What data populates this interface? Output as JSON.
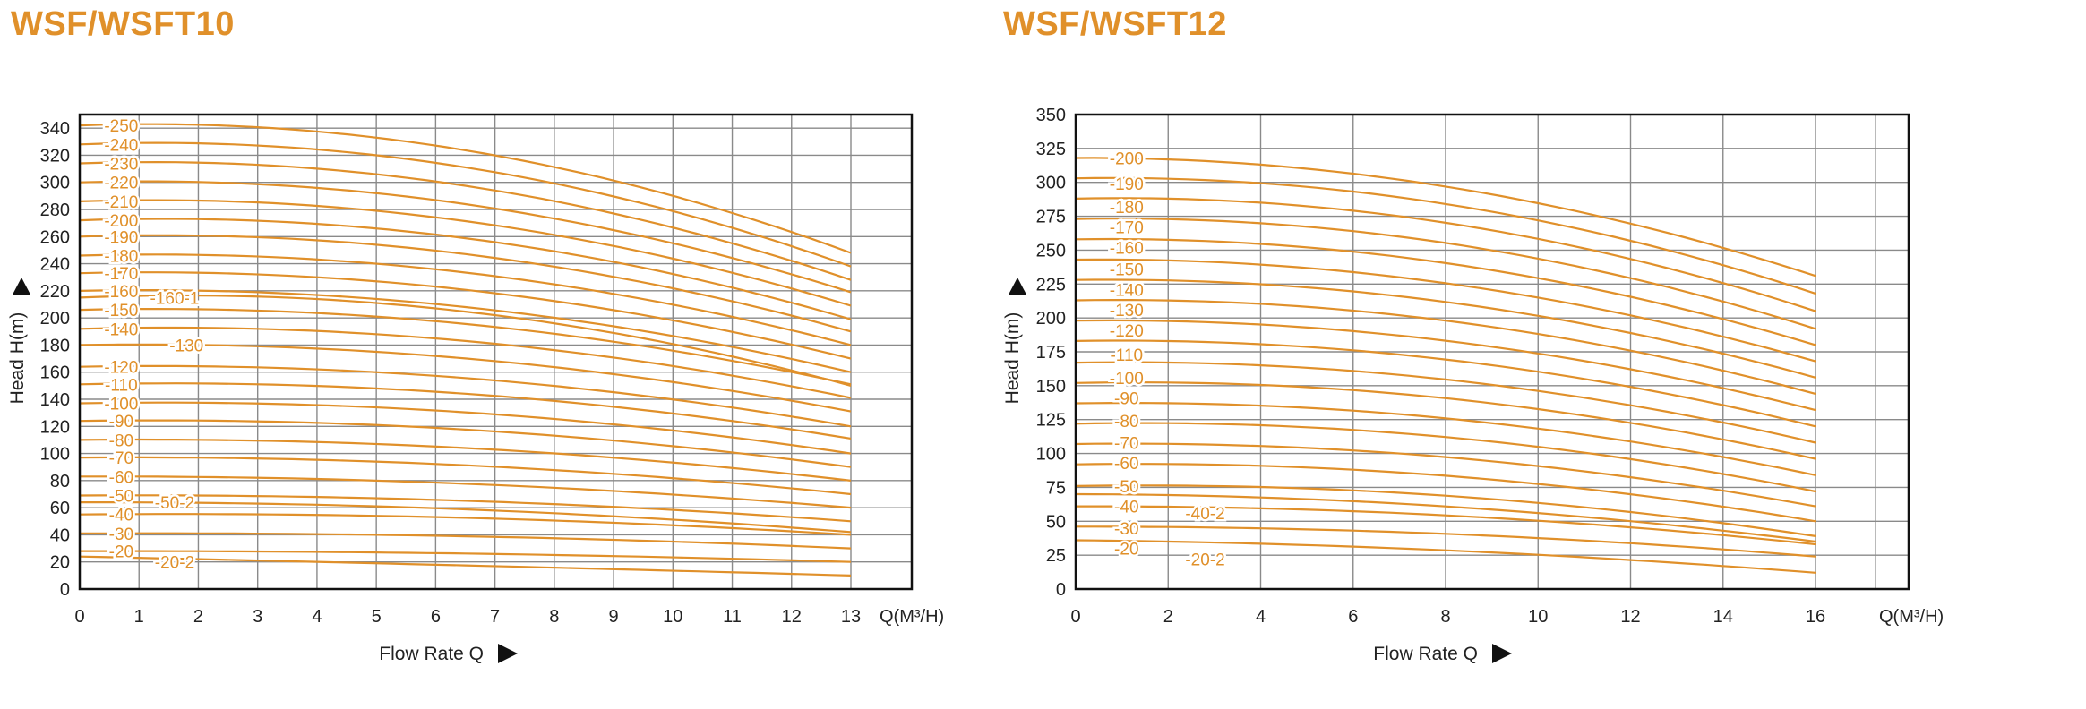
{
  "colors": {
    "curve": "#E0902A",
    "title": "#E0902A",
    "grid": "#8a8a8a",
    "frame": "#111111",
    "text": "#222222"
  },
  "chart_data": [
    {
      "type": "line",
      "title": "WSF/WSFT10",
      "xlabel": "Flow Rate Q",
      "ylabel": "Head H(m)",
      "x_unit_label": "Q(M³/H)",
      "xlim": [
        0,
        14
      ],
      "ylim": [
        0,
        350
      ],
      "x_ticks": [
        "0",
        "1",
        "2",
        "3",
        "4",
        "5",
        "6",
        "7",
        "8",
        "9",
        "10",
        "11",
        "12",
        "13"
      ],
      "y_ticks": [
        "0",
        "20",
        "40",
        "60",
        "80",
        "100",
        "120",
        "140",
        "160",
        "180",
        "200",
        "220",
        "240",
        "260",
        "280",
        "300",
        "320",
        "340"
      ],
      "grid": true,
      "series": [
        {
          "name": "-250",
          "x": [
            0,
            5,
            13
          ],
          "y": [
            342,
            333,
            248
          ]
        },
        {
          "name": "-240",
          "x": [
            0,
            5,
            13
          ],
          "y": [
            328,
            320,
            238
          ]
        },
        {
          "name": "-230",
          "x": [
            0,
            5,
            13
          ],
          "y": [
            314,
            306,
            228
          ]
        },
        {
          "name": "-220",
          "x": [
            0,
            5,
            13
          ],
          "y": [
            300,
            292,
            219
          ]
        },
        {
          "name": "-210",
          "x": [
            0,
            5,
            13
          ],
          "y": [
            286,
            279,
            209
          ]
        },
        {
          "name": "-200",
          "x": [
            0,
            5,
            13
          ],
          "y": [
            272,
            266,
            199
          ]
        },
        {
          "name": "-190",
          "x": [
            0,
            5,
            13
          ],
          "y": [
            260,
            254,
            190
          ]
        },
        {
          "name": "-180",
          "x": [
            0,
            5,
            13
          ],
          "y": [
            246,
            240,
            180
          ]
        },
        {
          "name": "-170",
          "x": [
            0,
            5,
            13
          ],
          "y": [
            233,
            227,
            170
          ]
        },
        {
          "name": "-160",
          "x": [
            0,
            5,
            13
          ],
          "y": [
            220,
            214,
            160
          ]
        },
        {
          "name": "-160-1",
          "x": [
            0,
            5,
            13
          ],
          "y": [
            215,
            211,
            150
          ]
        },
        {
          "name": "-150",
          "x": [
            0,
            5,
            13
          ],
          "y": [
            206,
            201,
            151
          ]
        },
        {
          "name": "-140",
          "x": [
            0,
            5,
            13
          ],
          "y": [
            192,
            188,
            141
          ]
        },
        {
          "name": "-130",
          "x": [
            0,
            5,
            13
          ],
          "y": [
            180,
            175,
            131
          ]
        },
        {
          "name": "-120",
          "x": [
            0,
            5,
            13
          ],
          "y": [
            164,
            160,
            120
          ]
        },
        {
          "name": "-110",
          "x": [
            0,
            5,
            13
          ],
          "y": [
            151,
            148,
            111
          ]
        },
        {
          "name": "-100",
          "x": [
            0,
            5,
            13
          ],
          "y": [
            137,
            134,
            100
          ]
        },
        {
          "name": "-90",
          "x": [
            0,
            5,
            13
          ],
          "y": [
            124,
            121,
            90
          ]
        },
        {
          "name": "-80",
          "x": [
            0,
            5,
            13
          ],
          "y": [
            110,
            107,
            80
          ]
        },
        {
          "name": "-70",
          "x": [
            0,
            5,
            13
          ],
          "y": [
            97,
            94,
            70
          ]
        },
        {
          "name": "-60",
          "x": [
            0,
            5,
            13
          ],
          "y": [
            83,
            80,
            60
          ]
        },
        {
          "name": "-50",
          "x": [
            0,
            5,
            13
          ],
          "y": [
            69,
            67,
            50
          ]
        },
        {
          "name": "-50-2",
          "x": [
            0,
            5,
            13
          ],
          "y": [
            64,
            61,
            42
          ]
        },
        {
          "name": "-40",
          "x": [
            0,
            5,
            13
          ],
          "y": [
            55,
            54,
            40
          ]
        },
        {
          "name": "-30",
          "x": [
            0,
            5,
            13
          ],
          "y": [
            41,
            40,
            30
          ]
        },
        {
          "name": "-20",
          "x": [
            0,
            5,
            13
          ],
          "y": [
            28,
            27,
            20
          ]
        },
        {
          "name": "-20-2",
          "x": [
            0,
            5,
            13
          ],
          "y": [
            24,
            19,
            10
          ]
        }
      ],
      "curve_labels": [
        {
          "text": "-250",
          "x": 0.7,
          "y": 342
        },
        {
          "text": "-240",
          "x": 0.7,
          "y": 328
        },
        {
          "text": "-230",
          "x": 0.7,
          "y": 314
        },
        {
          "text": "-220",
          "x": 0.7,
          "y": 300
        },
        {
          "text": "-210",
          "x": 0.7,
          "y": 286
        },
        {
          "text": "-200",
          "x": 0.7,
          "y": 272
        },
        {
          "text": "-190",
          "x": 0.7,
          "y": 260
        },
        {
          "text": "-180",
          "x": 0.7,
          "y": 246
        },
        {
          "text": "-170",
          "x": 0.7,
          "y": 233
        },
        {
          "text": "-160",
          "x": 0.7,
          "y": 220
        },
        {
          "text": "-160-1",
          "x": 1.6,
          "y": 215
        },
        {
          "text": "-150",
          "x": 0.7,
          "y": 206
        },
        {
          "text": "-140",
          "x": 0.7,
          "y": 192
        },
        {
          "text": "-130",
          "x": 1.8,
          "y": 180
        },
        {
          "text": "-120",
          "x": 0.7,
          "y": 164
        },
        {
          "text": "-110",
          "x": 0.7,
          "y": 151
        },
        {
          "text": "-100",
          "x": 0.7,
          "y": 137
        },
        {
          "text": "-90",
          "x": 0.7,
          "y": 124
        },
        {
          "text": "-80",
          "x": 0.7,
          "y": 110
        },
        {
          "text": "-70",
          "x": 0.7,
          "y": 97
        },
        {
          "text": "-60",
          "x": 0.7,
          "y": 83
        },
        {
          "text": "-50",
          "x": 0.7,
          "y": 69
        },
        {
          "text": "-50-2",
          "x": 1.6,
          "y": 64
        },
        {
          "text": "-40",
          "x": 0.7,
          "y": 55
        },
        {
          "text": "-30",
          "x": 0.7,
          "y": 41
        },
        {
          "text": "-20",
          "x": 0.7,
          "y": 28
        },
        {
          "text": "-20-2",
          "x": 1.6,
          "y": 20
        }
      ]
    },
    {
      "type": "line",
      "title": "WSF/WSFT12",
      "xlabel": "Flow Rate Q",
      "ylabel": "Head H(m)",
      "x_unit_label": "Q(M³/H)",
      "xlim": [
        0,
        18
      ],
      "ylim": [
        0,
        350
      ],
      "x_ticks": [
        "0",
        "2",
        "4",
        "6",
        "8",
        "10",
        "12",
        "14",
        "16"
      ],
      "y_ticks": [
        "0",
        "25",
        "50",
        "75",
        "100",
        "125",
        "150",
        "175",
        "200",
        "225",
        "250",
        "275",
        "300",
        "325",
        "350"
      ],
      "grid": true,
      "series": [
        {
          "name": "-200",
          "x": [
            0,
            7,
            16
          ],
          "y": [
            318,
            302,
            231
          ]
        },
        {
          "name": "-190",
          "x": [
            0,
            7,
            16
          ],
          "y": [
            303,
            289,
            218
          ]
        },
        {
          "name": "-180",
          "x": [
            0,
            7,
            16
          ],
          "y": [
            288,
            275,
            205
          ]
        },
        {
          "name": "-170",
          "x": [
            0,
            7,
            16
          ],
          "y": [
            273,
            260,
            192
          ]
        },
        {
          "name": "-160",
          "x": [
            0,
            7,
            16
          ],
          "y": [
            258,
            245,
            180
          ]
        },
        {
          "name": "-150",
          "x": [
            0,
            7,
            16
          ],
          "y": [
            243,
            230,
            168
          ]
        },
        {
          "name": "-140",
          "x": [
            0,
            7,
            16
          ],
          "y": [
            228,
            216,
            156
          ]
        },
        {
          "name": "-130",
          "x": [
            0,
            7,
            16
          ],
          "y": [
            213,
            202,
            144
          ]
        },
        {
          "name": "-120",
          "x": [
            0,
            7,
            16
          ],
          "y": [
            198,
            187,
            132
          ]
        },
        {
          "name": "-110",
          "x": [
            0,
            7,
            16
          ],
          "y": [
            183,
            173,
            120
          ]
        },
        {
          "name": "-100",
          "x": [
            0,
            7,
            16
          ],
          "y": [
            167,
            158,
            108
          ]
        },
        {
          "name": "-90",
          "x": [
            0,
            7,
            16
          ],
          "y": [
            152,
            144,
            96
          ]
        },
        {
          "name": "-80",
          "x": [
            0,
            7,
            16
          ],
          "y": [
            137,
            129,
            84
          ]
        },
        {
          "name": "-70",
          "x": [
            0,
            7,
            16
          ],
          "y": [
            122,
            115,
            72
          ]
        },
        {
          "name": "-60",
          "x": [
            0,
            7,
            16
          ],
          "y": [
            107,
            100,
            61
          ]
        },
        {
          "name": "-50",
          "x": [
            0,
            7,
            16
          ],
          "y": [
            92,
            86,
            50
          ]
        },
        {
          "name": "-40",
          "x": [
            0,
            7,
            16
          ],
          "y": [
            76,
            71,
            39
          ]
        },
        {
          "name": "-40-2",
          "x": [
            0,
            7,
            16
          ],
          "y": [
            70,
            63,
            35
          ]
        },
        {
          "name": "-30",
          "x": [
            0,
            7,
            16
          ],
          "y": [
            61,
            56,
            33
          ]
        },
        {
          "name": "-20",
          "x": [
            0,
            7,
            16
          ],
          "y": [
            46,
            42,
            24
          ]
        },
        {
          "name": "-20-2",
          "x": [
            0,
            7,
            16
          ],
          "y": [
            36,
            30,
            12
          ]
        }
      ],
      "curve_labels": [
        {
          "text": "-200",
          "x": 1.1,
          "y": 318
        },
        {
          "text": "-190",
          "x": 1.1,
          "y": 299
        },
        {
          "text": "-180",
          "x": 1.1,
          "y": 282
        },
        {
          "text": "-170",
          "x": 1.1,
          "y": 267
        },
        {
          "text": "-160",
          "x": 1.1,
          "y": 252
        },
        {
          "text": "-150",
          "x": 1.1,
          "y": 236
        },
        {
          "text": "-140",
          "x": 1.1,
          "y": 221
        },
        {
          "text": "-130",
          "x": 1.1,
          "y": 206
        },
        {
          "text": "-120",
          "x": 1.1,
          "y": 191
        },
        {
          "text": "-110",
          "x": 1.1,
          "y": 173
        },
        {
          "text": "-100",
          "x": 1.1,
          "y": 156
        },
        {
          "text": "-90",
          "x": 1.1,
          "y": 141
        },
        {
          "text": "-80",
          "x": 1.1,
          "y": 124
        },
        {
          "text": "-70",
          "x": 1.1,
          "y": 108
        },
        {
          "text": "-60",
          "x": 1.1,
          "y": 93
        },
        {
          "text": "-50",
          "x": 1.1,
          "y": 76
        },
        {
          "text": "-40",
          "x": 1.1,
          "y": 61
        },
        {
          "text": "-40-2",
          "x": 2.8,
          "y": 56
        },
        {
          "text": "-30",
          "x": 1.1,
          "y": 45
        },
        {
          "text": "-20",
          "x": 1.1,
          "y": 30
        },
        {
          "text": "-20-2",
          "x": 2.8,
          "y": 22
        }
      ]
    }
  ]
}
